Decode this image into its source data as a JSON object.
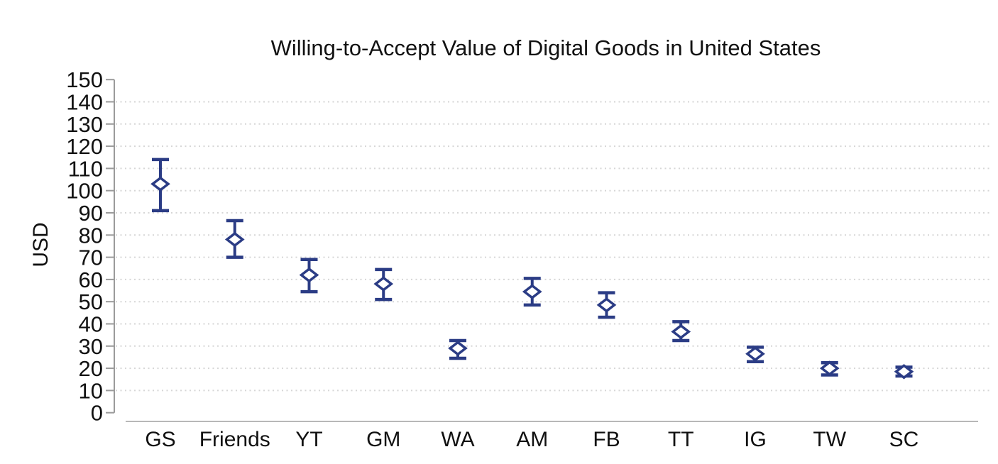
{
  "chart_data": {
    "type": "scatter",
    "subtype": "point-estimates-with-error-bars",
    "title": "Willing-to-Accept Value of Digital Goods in United States",
    "xlabel": "",
    "ylabel": "USD",
    "ylim": [
      0,
      150
    ],
    "ytick_interval": 10,
    "grid": "horizontal-dotted",
    "legend": "none",
    "marker": "hollow-diamond",
    "categories": [
      "GS",
      "Friends",
      "YT",
      "GM",
      "WA",
      "AM",
      "FB",
      "TT",
      "IG",
      "TW",
      "SC"
    ],
    "values": [
      103,
      78,
      62,
      58,
      29,
      54.5,
      48.5,
      36.5,
      26.5,
      20,
      18.5
    ],
    "ci_low": [
      91,
      70,
      54.5,
      51,
      24.5,
      48.5,
      43,
      32.5,
      23,
      17,
      16.5
    ],
    "ci_high": [
      114,
      86.5,
      69,
      64.5,
      32.5,
      60.5,
      54,
      41,
      29.5,
      22.5,
      20.5
    ]
  },
  "colors": {
    "marker": "#2b3c85",
    "y_axis": "#9b9b9b",
    "x_axis": "#b8b8b8",
    "gridline": "#d6d6d6",
    "text": "#111111"
  }
}
